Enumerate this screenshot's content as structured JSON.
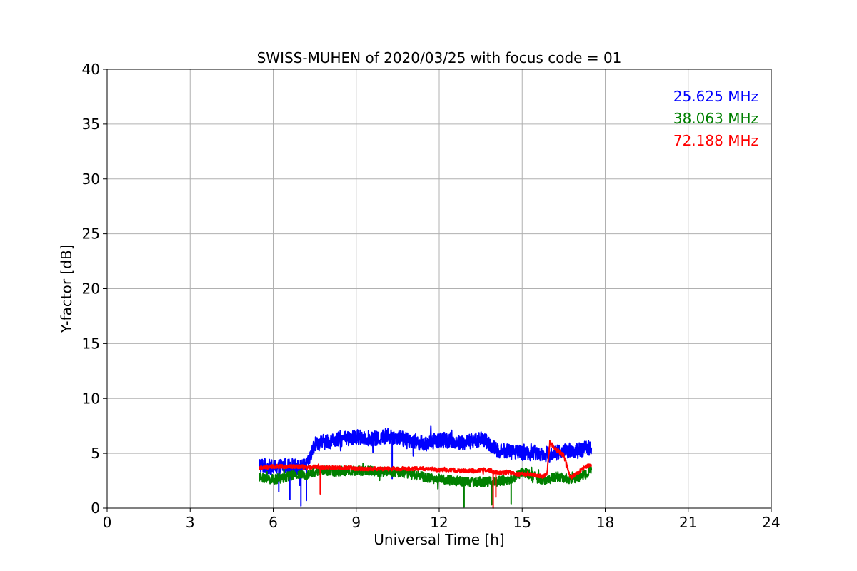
{
  "chart_data": {
    "type": "line",
    "title": "SWISS-MUHEN of 2020/03/25 with focus code = 01",
    "xlabel": "Universal Time [h]",
    "ylabel": "Y-factor [dB]",
    "xlim": [
      0,
      24
    ],
    "ylim": [
      0,
      40
    ],
    "xticks": [
      0,
      3,
      6,
      9,
      12,
      15,
      18,
      21,
      24
    ],
    "yticks": [
      0,
      5,
      10,
      15,
      20,
      25,
      30,
      35,
      40
    ],
    "grid": true,
    "legend_position": "top-right",
    "series": [
      {
        "name": "25.625 MHz",
        "color": "#0000ff",
        "noise_amplitude": 0.7,
        "x": [
          5.5,
          5.75,
          6.0,
          6.25,
          6.5,
          6.75,
          7.0,
          7.25,
          7.5,
          7.75,
          8.0,
          8.25,
          8.5,
          8.75,
          9.0,
          9.25,
          9.5,
          9.75,
          10.0,
          10.25,
          10.5,
          10.75,
          11.0,
          11.25,
          11.5,
          11.75,
          12.0,
          12.25,
          12.5,
          12.75,
          13.0,
          13.25,
          13.5,
          13.75,
          14.0,
          14.25,
          14.5,
          14.75,
          15.0,
          15.25,
          15.5,
          15.75,
          16.0,
          16.25,
          16.5,
          16.75,
          17.0,
          17.25,
          17.5
        ],
        "y": [
          4.0,
          3.8,
          3.7,
          3.8,
          3.9,
          3.8,
          3.7,
          4.0,
          5.8,
          6.0,
          6.1,
          6.2,
          6.3,
          6.3,
          6.5,
          6.4,
          6.4,
          6.3,
          6.5,
          6.5,
          6.5,
          6.3,
          6.2,
          6.0,
          5.9,
          6.1,
          6.2,
          6.2,
          6.1,
          6.0,
          6.0,
          6.2,
          6.3,
          6.0,
          5.4,
          5.2,
          5.3,
          5.2,
          5.0,
          5.0,
          5.1,
          5.0,
          4.9,
          5.1,
          5.2,
          5.3,
          5.2,
          5.4,
          5.6
        ],
        "spikes": [
          [
            6.2,
            1.5
          ],
          [
            6.6,
            0.8
          ],
          [
            7.0,
            0.2
          ],
          [
            7.2,
            0.7
          ],
          [
            10.3,
            2.7
          ]
        ]
      },
      {
        "name": "38.063 MHz",
        "color": "#008000",
        "noise_amplitude": 0.45,
        "x": [
          5.5,
          5.75,
          6.0,
          6.25,
          6.5,
          6.75,
          7.0,
          7.25,
          7.5,
          7.75,
          8.0,
          8.25,
          8.5,
          8.75,
          9.0,
          9.25,
          9.5,
          9.75,
          10.0,
          10.25,
          10.5,
          10.75,
          11.0,
          11.25,
          11.5,
          11.75,
          12.0,
          12.25,
          12.5,
          12.75,
          13.0,
          13.25,
          13.5,
          13.75,
          14.0,
          14.25,
          14.5,
          14.75,
          15.0,
          15.25,
          15.5,
          15.75,
          16.0,
          16.25,
          16.5,
          16.75,
          17.0,
          17.25,
          17.5
        ],
        "y": [
          2.8,
          2.7,
          2.6,
          2.7,
          2.9,
          3.0,
          3.0,
          3.1,
          3.3,
          3.4,
          3.4,
          3.3,
          3.4,
          3.4,
          3.4,
          3.4,
          3.4,
          3.3,
          3.3,
          3.3,
          3.3,
          3.2,
          3.1,
          3.0,
          2.8,
          2.7,
          2.7,
          2.6,
          2.5,
          2.5,
          2.4,
          2.4,
          2.4,
          2.4,
          2.4,
          2.5,
          2.6,
          2.8,
          3.3,
          3.1,
          2.8,
          2.5,
          2.7,
          2.9,
          2.8,
          2.6,
          2.8,
          3.0,
          3.6
        ],
        "spikes": [
          [
            12.9,
            0.1
          ],
          [
            13.3,
            2.3
          ],
          [
            13.9,
            0.3
          ],
          [
            14.6,
            0.4
          ]
        ]
      },
      {
        "name": "72.188 MHz",
        "color": "#ff0000",
        "noise_amplitude": 0.18,
        "x": [
          5.5,
          5.75,
          6.0,
          6.25,
          6.5,
          6.75,
          7.0,
          7.25,
          7.5,
          7.75,
          8.0,
          8.25,
          8.5,
          8.75,
          9.0,
          9.25,
          9.5,
          9.75,
          10.0,
          10.25,
          10.5,
          10.75,
          11.0,
          11.25,
          11.5,
          11.75,
          12.0,
          12.25,
          12.5,
          12.75,
          13.0,
          13.25,
          13.5,
          13.75,
          14.0,
          14.25,
          14.5,
          14.75,
          15.0,
          15.25,
          15.5,
          15.75,
          15.9,
          16.0,
          16.25,
          16.5,
          16.75,
          17.0,
          17.25,
          17.5
        ],
        "y": [
          3.7,
          3.7,
          3.8,
          3.8,
          3.8,
          3.8,
          3.8,
          3.7,
          3.8,
          3.7,
          3.7,
          3.7,
          3.7,
          3.7,
          3.6,
          3.6,
          3.6,
          3.6,
          3.6,
          3.6,
          3.6,
          3.6,
          3.6,
          3.6,
          3.6,
          3.6,
          3.5,
          3.5,
          3.5,
          3.4,
          3.4,
          3.4,
          3.5,
          3.5,
          3.3,
          3.2,
          3.3,
          3.1,
          3.1,
          3.1,
          3.0,
          2.9,
          3.2,
          6.0,
          5.3,
          4.8,
          2.8,
          3.2,
          3.7,
          4.0
        ],
        "spikes": [
          [
            7.7,
            1.3
          ],
          [
            13.95,
            0.0
          ],
          [
            14.05,
            1.0
          ]
        ]
      }
    ]
  }
}
